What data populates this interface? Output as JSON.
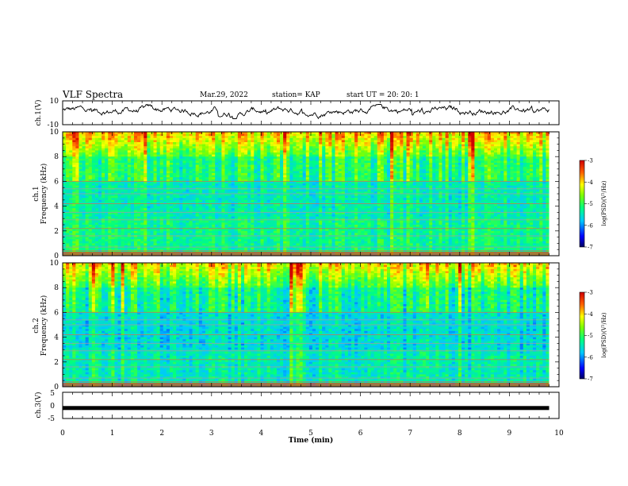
{
  "header": {
    "title": "VLF Spectra",
    "date": "Mar.29, 2022",
    "station": "station= KAP",
    "start_ut": "start UT =  20: 20: 1"
  },
  "chart_data": [
    {
      "type": "line",
      "name": "ch1-voltage",
      "ylabel": "ch.1(V)",
      "ylim": [
        -10,
        10
      ],
      "y_ticks": [
        "10",
        "-10"
      ],
      "xlim": [
        0,
        10
      ],
      "approx_mean": 2,
      "approx_range": [
        -5,
        7
      ]
    },
    {
      "type": "heatmap",
      "name": "ch1-spectrogram",
      "ylabel_line1": "ch.1",
      "ylabel_line2": "Frequency (kHz)",
      "ylim": [
        0,
        10
      ],
      "y_ticks": [
        "0",
        "2",
        "4",
        "6",
        "8",
        "10"
      ],
      "xlim": [
        0,
        9.8
      ],
      "colorbar": {
        "label": "log(PSD)(V²/Hz)",
        "range": [
          -7,
          -3
        ],
        "ticks": [
          "-3",
          "-4",
          "-5",
          "-6",
          "-7"
        ]
      }
    },
    {
      "type": "heatmap",
      "name": "ch2-spectrogram",
      "ylabel_line1": "ch.2",
      "ylabel_line2": "Frequency (kHz)",
      "ylim": [
        0,
        10
      ],
      "y_ticks": [
        "0",
        "2",
        "4",
        "6",
        "8",
        "10"
      ],
      "xlim": [
        0,
        9.8
      ],
      "colorbar": {
        "label": "log(PSD)(V²/Hz)",
        "range": [
          -7,
          -3
        ],
        "ticks": [
          "-3",
          "-4",
          "-5",
          "-6",
          "-7"
        ]
      }
    },
    {
      "type": "line",
      "name": "ch3-voltage",
      "ylabel": "ch.3(V)",
      "ylim": [
        -5,
        5
      ],
      "y_ticks": [
        "5",
        "0",
        "-5"
      ],
      "xlim": [
        0,
        10
      ],
      "approx_value": -1
    }
  ],
  "xaxis": {
    "label": "Time (min)",
    "range": [
      0,
      10
    ],
    "ticks": [
      "0",
      "1",
      "2",
      "3",
      "4",
      "5",
      "6",
      "7",
      "8",
      "9",
      "10"
    ]
  }
}
